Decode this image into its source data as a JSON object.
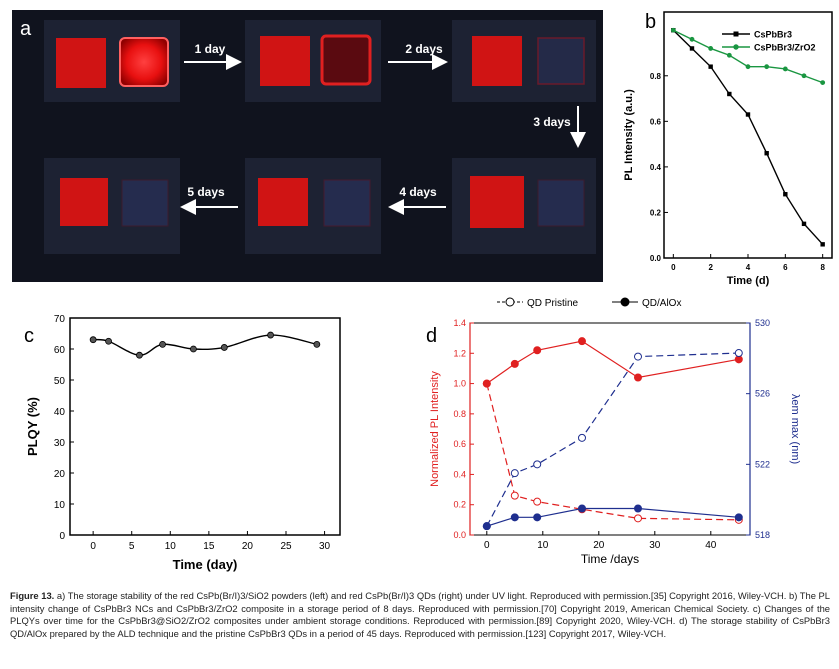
{
  "panel_a": {
    "label": "a",
    "arrows": [
      {
        "label": "1 day"
      },
      {
        "label": "2 days"
      },
      {
        "label": "3 days"
      },
      {
        "label": "4 days"
      },
      {
        "label": "5 days"
      }
    ]
  },
  "caption": {
    "figure_label": "Figure 13.",
    "text": "a) The storage stability of the red CsPb(Br/I)3/SiO2 powders (left) and red CsPb(Br/I)3 QDs (right) under UV light. Reproduced with permission.[35] Copyright 2016, Wiley-VCH. b) The PL intensity change of CsPbBr3 NCs and CsPbBr3/ZrO2 composite in a storage period of 8 days. Reproduced with permission.[70] Copyright 2019, American Chemical Society. c) Changes of the PLQYs over time for the CsPbBr3@SiO2/ZrO2 composites under ambient storage conditions. Reproduced with permission.[89] Copyright 2020, Wiley-VCH. d) The storage stability of CsPbBr3 QD/AlOx prepared by the ALD technique and the pristine CsPbBr3 QDs in a period of 45 days. Reproduced with permission.[123] Copyright 2017, Wiley-VCH."
  },
  "chart_data": [
    {
      "panel": "b",
      "type": "line",
      "xlabel": "Time (d)",
      "ylabel": "PL Intensity (a.u.)",
      "xlim": [
        -0.5,
        8.5
      ],
      "ylim": [
        0.0,
        1.08
      ],
      "xticks": [
        0,
        2,
        4,
        6,
        8
      ],
      "yticks": [
        0.0,
        0.2,
        0.4,
        0.6,
        0.8
      ],
      "legend_position": "top-right",
      "x": [
        0,
        1,
        2,
        3,
        4,
        5,
        6,
        7,
        8
      ],
      "series": [
        {
          "name": "CsPbBr3",
          "color": "#000000",
          "marker": "square",
          "values": [
            1.0,
            0.92,
            0.84,
            0.72,
            0.63,
            0.46,
            0.28,
            0.15,
            0.06
          ]
        },
        {
          "name": "CsPbBr3/ZrO2",
          "color": "#1a9641",
          "marker": "circle",
          "values": [
            1.0,
            0.96,
            0.92,
            0.89,
            0.84,
            0.84,
            0.83,
            0.8,
            0.77
          ]
        }
      ]
    },
    {
      "panel": "c",
      "type": "scatter",
      "xlabel": "Time (day)",
      "ylabel": "PLQY (%)",
      "xlim": [
        -3,
        32
      ],
      "ylim": [
        0,
        70
      ],
      "xticks": [
        0,
        5,
        10,
        15,
        20,
        25,
        30
      ],
      "yticks": [
        0,
        10,
        20,
        30,
        40,
        50,
        60,
        70
      ],
      "series": [
        {
          "name": "",
          "color": "#000000",
          "x": [
            0,
            2,
            6,
            9,
            13,
            17,
            23,
            29
          ],
          "values": [
            63,
            62.5,
            58,
            61.5,
            60,
            60.5,
            64.5,
            61.5
          ]
        }
      ]
    },
    {
      "panel": "d",
      "type": "line",
      "xlabel": "Time /days",
      "ylabel": "Normalized PL Intensity",
      "ylabel_right": "λem max (nm)",
      "xlim": [
        -3,
        47
      ],
      "ylim": [
        0.0,
        1.4
      ],
      "ylim_right": [
        518,
        530
      ],
      "xticks": [
        0,
        10,
        20,
        30,
        40
      ],
      "yticks": [
        0.0,
        0.2,
        0.4,
        0.6,
        0.8,
        1.0,
        1.2,
        1.4
      ],
      "yticks_right": [
        518,
        522,
        526,
        530
      ],
      "legend_position": "top",
      "series": [
        {
          "name": "QD Pristine",
          "axis": "left",
          "color": "#e02020",
          "style": "dashed",
          "marker": "open-circle",
          "x": [
            0,
            5,
            9,
            17,
            27,
            45
          ],
          "values": [
            1.0,
            0.26,
            0.22,
            0.17,
            0.11,
            0.1
          ]
        },
        {
          "name": "QD/AlOx",
          "axis": "left",
          "color": "#e02020",
          "style": "solid",
          "marker": "filled-circle",
          "x": [
            0,
            5,
            9,
            17,
            27,
            45
          ],
          "values": [
            1.0,
            1.13,
            1.22,
            1.28,
            1.04,
            1.16
          ]
        },
        {
          "name": "QD Pristine",
          "axis": "right",
          "color": "#1f2f8f",
          "style": "dashed",
          "marker": "open-circle",
          "x": [
            0,
            5,
            9,
            17,
            27,
            45
          ],
          "values": [
            518.5,
            521.5,
            522.0,
            523.5,
            528.1,
            528.3
          ]
        },
        {
          "name": "QD/AlOx",
          "axis": "right",
          "color": "#1f2f8f",
          "style": "solid",
          "marker": "filled-circle",
          "x": [
            0,
            5,
            9,
            17,
            27,
            45
          ],
          "values": [
            518.5,
            519.0,
            519.0,
            519.5,
            519.5,
            519.0
          ]
        }
      ]
    }
  ]
}
